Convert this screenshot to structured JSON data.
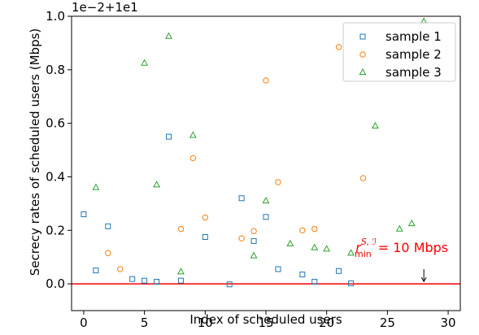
{
  "chart_data": {
    "type": "scatter",
    "title": "",
    "xlabel": "Index of scheduled users",
    "ylabel": "Secrecy rates of scheduled users (Mbps)",
    "offset_text": "1e−2+1e1",
    "xlim": [
      -1,
      31
    ],
    "ylim": [
      -0.1,
      1.0
    ],
    "xticks": [
      0,
      5,
      10,
      15,
      20,
      25,
      30
    ],
    "yticks": [
      0.0,
      0.2,
      0.4,
      0.6,
      0.8,
      1.0
    ],
    "xtick_labels": [
      "0",
      "5",
      "10",
      "15",
      "20",
      "25",
      "30"
    ],
    "ytick_labels": [
      "0.0",
      "0.2",
      "0.4",
      "0.6",
      "0.8",
      "1.0"
    ],
    "legend_position": "top-right",
    "series": [
      {
        "name": "sample 1",
        "marker": "square",
        "color": "#1f77b4",
        "points": [
          [
            0,
            0.26
          ],
          [
            1,
            0.05
          ],
          [
            2,
            0.215
          ],
          [
            4,
            0.018
          ],
          [
            5,
            0.012
          ],
          [
            6,
            0.008
          ],
          [
            7,
            0.55
          ],
          [
            8,
            0.012
          ],
          [
            10,
            0.175
          ],
          [
            12,
            -0.002
          ],
          [
            13,
            0.32
          ],
          [
            14,
            0.16
          ],
          [
            15,
            0.25
          ],
          [
            16,
            0.055
          ],
          [
            18,
            0.035
          ],
          [
            19,
            0.008
          ],
          [
            21,
            0.048
          ],
          [
            22,
            0.002
          ]
        ]
      },
      {
        "name": "sample 2",
        "marker": "circle",
        "color": "#ff7f0e",
        "points": [
          [
            2,
            0.115
          ],
          [
            3,
            0.055
          ],
          [
            8,
            0.205
          ],
          [
            9,
            0.47
          ],
          [
            10,
            0.248
          ],
          [
            13,
            0.17
          ],
          [
            14,
            0.197
          ],
          [
            15,
            0.76
          ],
          [
            16,
            0.38
          ],
          [
            18,
            0.2
          ],
          [
            19,
            0.205
          ],
          [
            21,
            0.885
          ],
          [
            23,
            0.395
          ]
        ]
      },
      {
        "name": "sample 3",
        "marker": "triangle",
        "color": "#2ca02c",
        "points": [
          [
            1,
            0.36
          ],
          [
            5,
            0.825
          ],
          [
            6,
            0.37
          ],
          [
            7,
            0.925
          ],
          [
            8,
            0.045
          ],
          [
            9,
            0.555
          ],
          [
            14,
            0.105
          ],
          [
            15,
            0.31
          ],
          [
            17,
            0.15
          ],
          [
            19,
            0.135
          ],
          [
            20,
            0.13
          ],
          [
            22,
            0.115
          ],
          [
            24,
            0.59
          ],
          [
            26,
            0.205
          ],
          [
            27,
            0.225
          ],
          [
            28,
            0.98
          ]
        ]
      }
    ],
    "threshold": {
      "value": 0.0,
      "color": "#ff0000",
      "label_main": "r",
      "label_sup": "S, ℐ",
      "label_sub": "min",
      "label_rest": "= 10 Mbps",
      "arrow_x": 28
    }
  }
}
